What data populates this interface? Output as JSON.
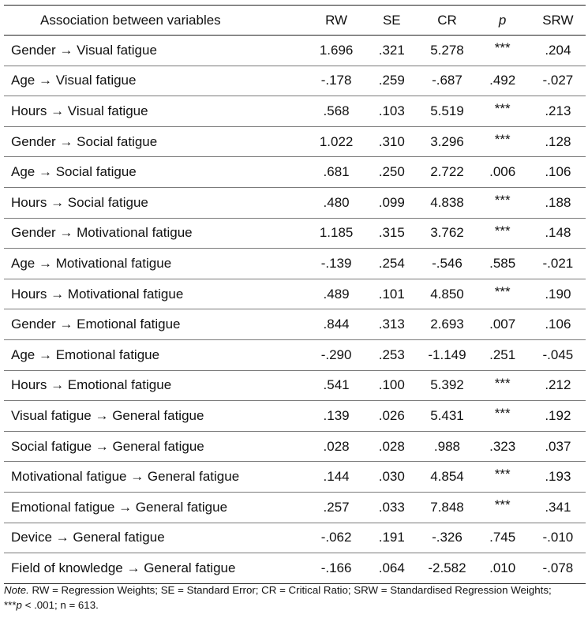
{
  "table": {
    "headers": [
      "Association between variables",
      "RW",
      "SE",
      "CR",
      "p",
      "SRW"
    ],
    "rows": [
      [
        "Gender → Visual fatigue",
        "1.696",
        ".321",
        "5.278",
        "***",
        ".204"
      ],
      [
        "Age → Visual fatigue",
        "-.178",
        ".259",
        "-.687",
        ".492",
        "-.027"
      ],
      [
        "Hours → Visual fatigue",
        ".568",
        ".103",
        "5.519",
        "***",
        ".213"
      ],
      [
        "Gender → Social fatigue",
        "1.022",
        ".310",
        "3.296",
        "***",
        ".128"
      ],
      [
        "Age → Social fatigue",
        ".681",
        ".250",
        "2.722",
        ".006",
        ".106"
      ],
      [
        "Hours → Social fatigue",
        ".480",
        ".099",
        "4.838",
        "***",
        ".188"
      ],
      [
        "Gender → Motivational fatigue",
        "1.185",
        ".315",
        "3.762",
        "***",
        ".148"
      ],
      [
        "Age → Motivational fatigue",
        "-.139",
        ".254",
        "-.546",
        ".585",
        "-.021"
      ],
      [
        "Hours → Motivational fatigue",
        ".489",
        ".101",
        "4.850",
        "***",
        ".190"
      ],
      [
        "Gender → Emotional fatigue",
        ".844",
        ".313",
        "2.693",
        ".007",
        ".106"
      ],
      [
        "Age → Emotional fatigue",
        "-.290",
        ".253",
        "-1.149",
        ".251",
        "-.045"
      ],
      [
        "Hours → Emotional fatigue",
        ".541",
        ".100",
        "5.392",
        "***",
        ".212"
      ],
      [
        "Visual fatigue → General fatigue",
        ".139",
        ".026",
        "5.431",
        "***",
        ".192"
      ],
      [
        "Social fatigue → General fatigue",
        ".028",
        ".028",
        ".988",
        ".323",
        ".037"
      ],
      [
        "Motivational fatigue → General fatigue",
        ".144",
        ".030",
        "4.854",
        "***",
        ".193"
      ],
      [
        "Emotional fatigue → General fatigue",
        ".257",
        ".033",
        "7.848",
        "***",
        ".341"
      ],
      [
        "Device → General fatigue",
        "-.062",
        ".191",
        "-.326",
        ".745",
        "-.010"
      ],
      [
        "Field of knowledge → General fatigue",
        "-.166",
        ".064",
        "-2.582",
        ".010",
        "-.078"
      ]
    ]
  },
  "note": {
    "label": "Note.",
    "line1": " RW = Regression Weights; SE = Standard Error; CR = Critical Ratio; SRW = Standardised Regression Weights;",
    "stars": "***",
    "p": "p",
    "line2_rest": " < .001; n = 613."
  }
}
